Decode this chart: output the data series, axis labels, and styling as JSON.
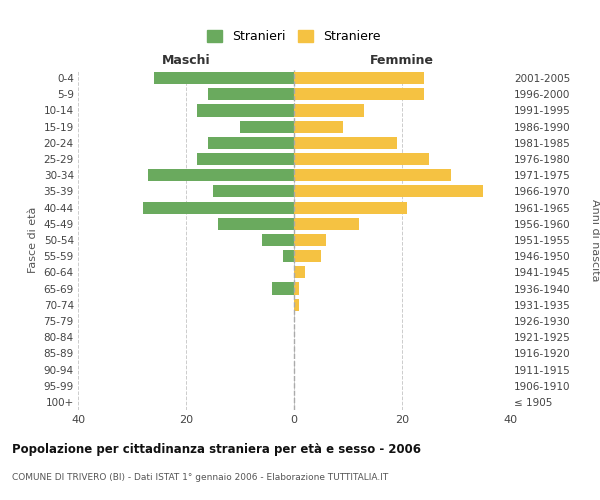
{
  "age_groups": [
    "100+",
    "95-99",
    "90-94",
    "85-89",
    "80-84",
    "75-79",
    "70-74",
    "65-69",
    "60-64",
    "55-59",
    "50-54",
    "45-49",
    "40-44",
    "35-39",
    "30-34",
    "25-29",
    "20-24",
    "15-19",
    "10-14",
    "5-9",
    "0-4"
  ],
  "birth_years": [
    "≤ 1905",
    "1906-1910",
    "1911-1915",
    "1916-1920",
    "1921-1925",
    "1926-1930",
    "1931-1935",
    "1936-1940",
    "1941-1945",
    "1946-1950",
    "1951-1955",
    "1956-1960",
    "1961-1965",
    "1966-1970",
    "1971-1975",
    "1976-1980",
    "1981-1985",
    "1986-1990",
    "1991-1995",
    "1996-2000",
    "2001-2005"
  ],
  "maschi": [
    0,
    0,
    0,
    0,
    0,
    0,
    0,
    4,
    0,
    2,
    6,
    14,
    28,
    15,
    27,
    18,
    16,
    10,
    18,
    16,
    26
  ],
  "femmine": [
    0,
    0,
    0,
    0,
    0,
    0,
    1,
    1,
    2,
    5,
    6,
    12,
    21,
    35,
    29,
    25,
    19,
    9,
    13,
    24,
    24
  ],
  "maschi_color": "#6aaa5e",
  "femmine_color": "#f5c242",
  "title": "Popolazione per cittadinanza straniera per età e sesso - 2006",
  "subtitle": "COMUNE DI TRIVERO (BI) - Dati ISTAT 1° gennaio 2006 - Elaborazione TUTTITALIA.IT",
  "ylabel_left": "Fasce di età",
  "ylabel_right": "Anni di nascita",
  "xlabel_maschi": "Maschi",
  "xlabel_femmine": "Femmine",
  "legend_maschi": "Stranieri",
  "legend_femmine": "Straniere",
  "xlim": 40,
  "background_color": "#ffffff",
  "grid_color": "#cccccc"
}
